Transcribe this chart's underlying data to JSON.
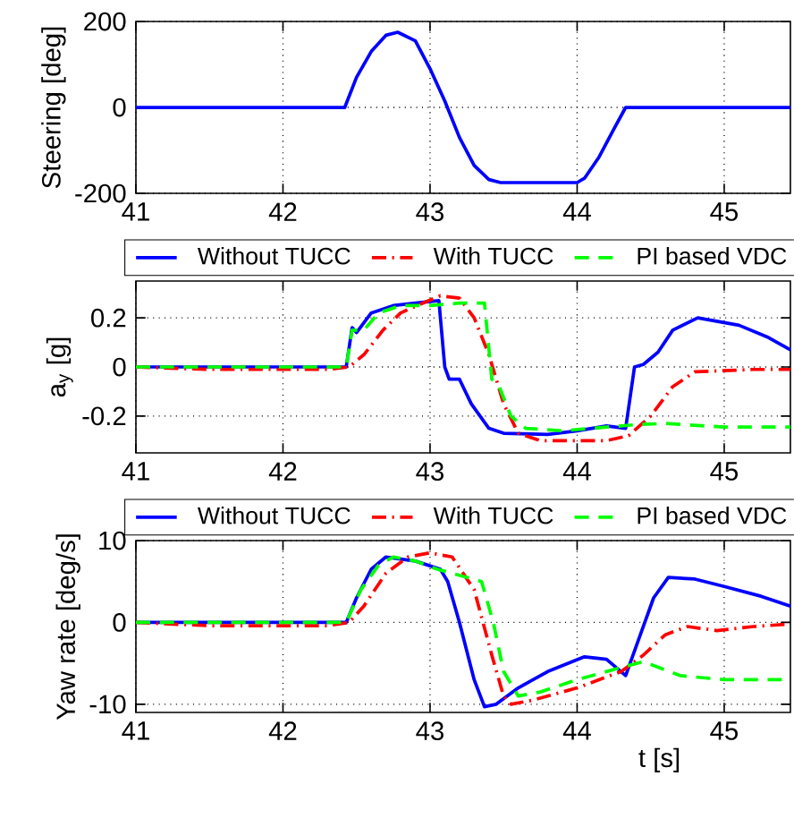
{
  "chart_data": [
    {
      "type": "line",
      "ylabel": "Steering [deg]",
      "xlim": [
        41,
        45.45
      ],
      "ylim": [
        -200,
        200
      ],
      "xticks": [
        41,
        42,
        43,
        44,
        45
      ],
      "yticks": [
        -200,
        0,
        200
      ],
      "grid": true,
      "marker": "none",
      "series": [
        {
          "color": "#0000ff",
          "line_style": "solid",
          "x": [
            41,
            42.42,
            42.5,
            42.6,
            42.7,
            42.78,
            42.9,
            43.0,
            43.1,
            43.2,
            43.3,
            43.4,
            43.48,
            44.0,
            44.05,
            44.15,
            44.25,
            44.33,
            45.45
          ],
          "values": [
            0,
            0,
            70,
            130,
            168,
            175,
            155,
            90,
            15,
            -70,
            -135,
            -168,
            -175,
            -175,
            -165,
            -115,
            -50,
            0,
            0
          ]
        }
      ]
    },
    {
      "type": "line",
      "ylabel": "a$_{y}$ [g]",
      "xlim": [
        41,
        45.45
      ],
      "ylim": [
        -0.35,
        0.35
      ],
      "xticks": [
        41,
        42,
        43,
        44,
        45
      ],
      "yticks": [
        -0.2,
        0,
        0.2
      ],
      "grid": true,
      "legend": "top",
      "marker": "none",
      "series": [
        {
          "name": "Without TUCC",
          "color": "#0000ff",
          "line_style": "solid",
          "x": [
            41,
            42.43,
            42.47,
            42.5,
            42.6,
            42.75,
            42.9,
            43.06,
            43.1,
            43.13,
            43.2,
            43.28,
            43.4,
            43.5,
            43.8,
            44.0,
            44.2,
            44.33,
            44.39,
            44.45,
            44.55,
            44.65,
            44.82,
            45.1,
            45.3,
            45.45
          ],
          "values": [
            0,
            0,
            0.16,
            0.14,
            0.22,
            0.25,
            0.26,
            0.27,
            0.0,
            -0.05,
            -0.05,
            -0.15,
            -0.25,
            -0.27,
            -0.275,
            -0.26,
            -0.24,
            -0.25,
            0.0,
            0.01,
            0.06,
            0.15,
            0.2,
            0.17,
            0.12,
            0.07
          ]
        },
        {
          "name": "With TUCC",
          "color": "#ff0000",
          "line_style": "dashdot",
          "x": [
            41,
            41.5,
            42.3,
            42.45,
            42.55,
            42.68,
            42.8,
            42.95,
            43.07,
            43.2,
            43.3,
            43.4,
            43.5,
            43.6,
            43.75,
            44.2,
            44.35,
            44.5,
            44.65,
            44.8,
            45.2,
            45.45
          ],
          "values": [
            0,
            -0.01,
            -0.01,
            0,
            0.05,
            0.15,
            0.22,
            0.26,
            0.29,
            0.28,
            0.2,
            0.05,
            -0.15,
            -0.27,
            -0.3,
            -0.3,
            -0.28,
            -0.2,
            -0.08,
            -0.02,
            -0.01,
            -0.01
          ]
        },
        {
          "name": "PI based VDC",
          "color": "#00ff00",
          "line_style": "dashed",
          "x": [
            41,
            42.43,
            42.47,
            42.55,
            42.65,
            42.8,
            43.0,
            43.2,
            43.37,
            43.42,
            43.47,
            43.55,
            43.65,
            43.9,
            44.1,
            44.4,
            44.6,
            45.0,
            45.45
          ],
          "values": [
            0,
            0,
            0.15,
            0.15,
            0.22,
            0.25,
            0.25,
            0.26,
            0.26,
            -0.05,
            -0.08,
            -0.2,
            -0.25,
            -0.26,
            -0.25,
            -0.235,
            -0.23,
            -0.245,
            -0.245
          ]
        }
      ]
    },
    {
      "type": "line",
      "xlabel": "t [s]",
      "ylabel": "Yaw rate [deg/s]",
      "xlim": [
        41,
        45.45
      ],
      "ylim": [
        -11,
        10
      ],
      "xticks": [
        41,
        42,
        43,
        44,
        45
      ],
      "yticks": [
        -10,
        0,
        10
      ],
      "grid": true,
      "legend": "top",
      "marker": "none",
      "series": [
        {
          "name": "Without TUCC",
          "color": "#0000ff",
          "line_style": "solid",
          "x": [
            41,
            42.43,
            42.5,
            42.6,
            42.7,
            42.9,
            43.07,
            43.12,
            43.2,
            43.3,
            43.37,
            43.45,
            43.6,
            43.8,
            44.05,
            44.2,
            44.33,
            44.42,
            44.52,
            44.62,
            44.8,
            45.0,
            45.25,
            45.45
          ],
          "values": [
            0,
            0,
            3,
            6.5,
            8,
            7.5,
            6.5,
            5,
            0,
            -7,
            -10.3,
            -10,
            -8,
            -6,
            -4.2,
            -4.5,
            -6.5,
            -2,
            3,
            5.5,
            5.3,
            4.4,
            3.2,
            2
          ]
        },
        {
          "name": "With TUCC",
          "color": "#ff0000",
          "line_style": "dashdot",
          "x": [
            41,
            41.5,
            42.3,
            42.45,
            42.55,
            42.7,
            42.85,
            43.0,
            43.15,
            43.3,
            43.42,
            43.5,
            43.55,
            43.7,
            44.0,
            44.3,
            44.45,
            44.6,
            44.75,
            44.95,
            45.2,
            45.45
          ],
          "values": [
            0,
            -0.4,
            -0.4,
            0,
            2,
            6,
            8,
            8.5,
            8,
            4,
            -4,
            -9,
            -10,
            -9.5,
            -8,
            -6,
            -4,
            -1.5,
            -0.5,
            -1,
            -0.5,
            -0.2
          ]
        },
        {
          "name": "PI based VDC",
          "color": "#00ff00",
          "line_style": "dashed",
          "x": [
            41,
            42.43,
            42.53,
            42.65,
            42.75,
            42.9,
            43.05,
            43.15,
            43.35,
            43.43,
            43.5,
            43.6,
            43.75,
            44.0,
            44.3,
            44.45,
            44.7,
            45.0,
            45.45
          ],
          "values": [
            0,
            0,
            4,
            7,
            8,
            7.5,
            6.5,
            6,
            5,
            0,
            -6,
            -9,
            -8.5,
            -7,
            -5.5,
            -4.8,
            -6.5,
            -7,
            -7
          ]
        }
      ]
    }
  ]
}
